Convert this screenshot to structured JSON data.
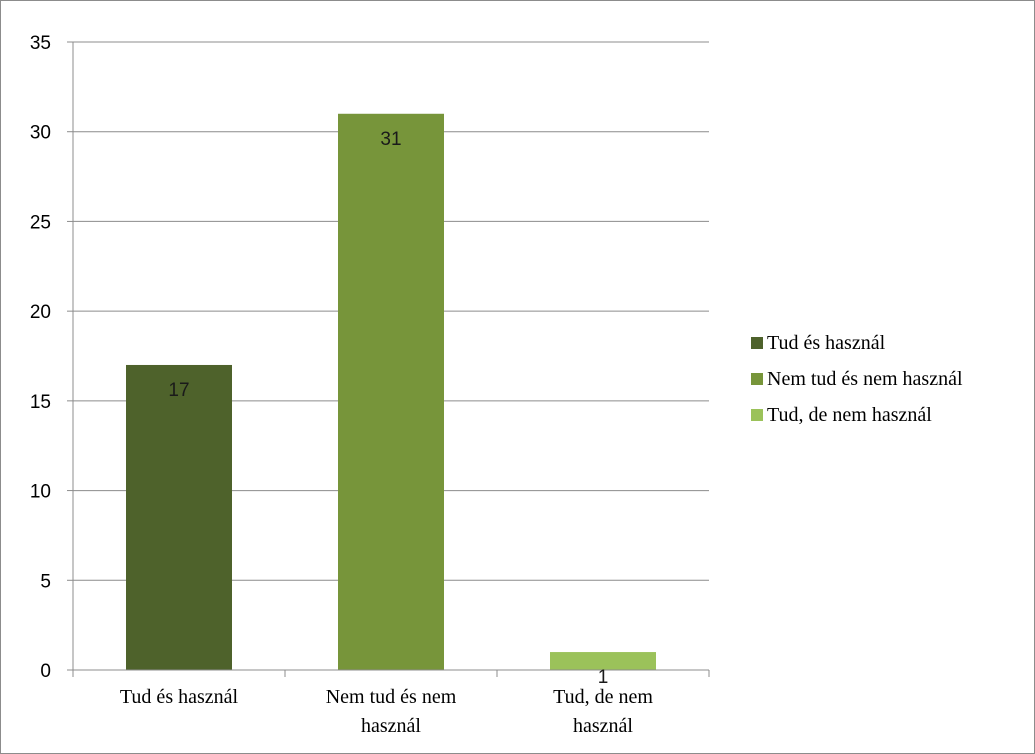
{
  "chart_data": {
    "type": "bar",
    "categories": [
      "Tud és használ",
      "Nem tud és nem használ",
      "Tud, de nem használ"
    ],
    "category_labels": [
      [
        "Tud és használ"
      ],
      [
        "Nem tud és nem",
        "használ"
      ],
      [
        "Tud, de nem",
        "használ"
      ]
    ],
    "values": [
      17,
      31,
      1
    ],
    "data_labels": [
      "17",
      "31",
      "1"
    ],
    "colors": [
      "#4e622b",
      "#77953a",
      "#9bc25a"
    ],
    "ylim": [
      0,
      35
    ],
    "yticks": [
      0,
      5,
      10,
      15,
      20,
      25,
      30,
      35
    ],
    "title": "",
    "xlabel": "",
    "ylabel": "",
    "grid": true,
    "legend_position": "right",
    "legend": [
      "Tud és használ",
      "Nem tud és nem használ",
      "Tud, de nem használ"
    ]
  }
}
